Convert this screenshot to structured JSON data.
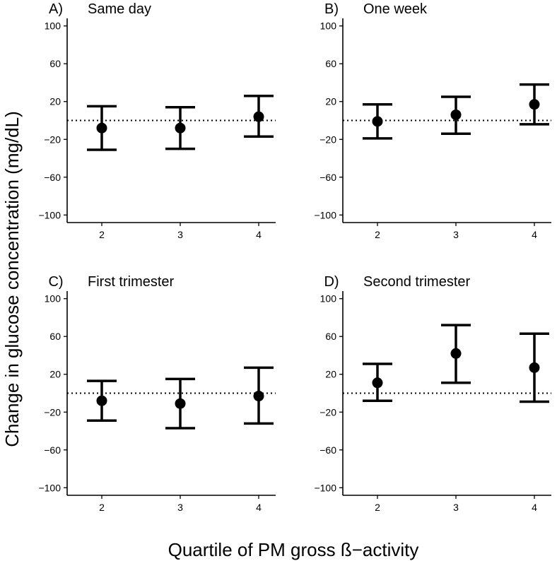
{
  "figure": {
    "ylabel": "Change in glucose concentration (mg/dL)",
    "xlabel": "Quartile of PM gross ß−activity"
  },
  "chart_data": [
    {
      "type": "errorbar",
      "panel_letter": "A)",
      "title": "Same day",
      "categories": [
        "2",
        "3",
        "4"
      ],
      "estimates": [
        -8,
        -8,
        4
      ],
      "lower": [
        -31,
        -30,
        -17
      ],
      "upper": [
        15,
        14,
        26
      ],
      "reference_line": 0,
      "ylim": [
        -108,
        108
      ],
      "yticks": [
        100,
        60,
        20,
        -20,
        -60,
        -100
      ],
      "ytick_labels": [
        "100",
        "60",
        "20",
        "−20",
        "−60",
        "−100"
      ]
    },
    {
      "type": "errorbar",
      "panel_letter": "B)",
      "title": "One week",
      "categories": [
        "2",
        "3",
        "4"
      ],
      "estimates": [
        -1,
        6,
        17
      ],
      "lower": [
        -19,
        -14,
        -4
      ],
      "upper": [
        17,
        25,
        38
      ],
      "reference_line": 0,
      "ylim": [
        -108,
        108
      ],
      "yticks": [
        100,
        60,
        20,
        -20,
        -60,
        -100
      ],
      "ytick_labels": [
        "100",
        "60",
        "20",
        "−20",
        "−60",
        "−100"
      ]
    },
    {
      "type": "errorbar",
      "panel_letter": "C)",
      "title": "First trimester",
      "categories": [
        "2",
        "3",
        "4"
      ],
      "estimates": [
        -8,
        -11,
        -3
      ],
      "lower": [
        -29,
        -37,
        -32
      ],
      "upper": [
        13,
        15,
        27
      ],
      "reference_line": 0,
      "ylim": [
        -108,
        108
      ],
      "yticks": [
        100,
        60,
        20,
        -20,
        -60,
        -100
      ],
      "ytick_labels": [
        "100",
        "60",
        "20",
        "−20",
        "−60",
        "−100"
      ]
    },
    {
      "type": "errorbar",
      "panel_letter": "D)",
      "title": "Second trimester",
      "categories": [
        "2",
        "3",
        "4"
      ],
      "estimates": [
        11,
        42,
        27
      ],
      "lower": [
        -8,
        11,
        -9
      ],
      "upper": [
        31,
        72,
        63
      ],
      "reference_line": 0,
      "ylim": [
        -108,
        108
      ],
      "yticks": [
        100,
        60,
        20,
        -20,
        -60,
        -100
      ],
      "ytick_labels": [
        "100",
        "60",
        "20",
        "−20",
        "−60",
        "−100"
      ]
    }
  ]
}
